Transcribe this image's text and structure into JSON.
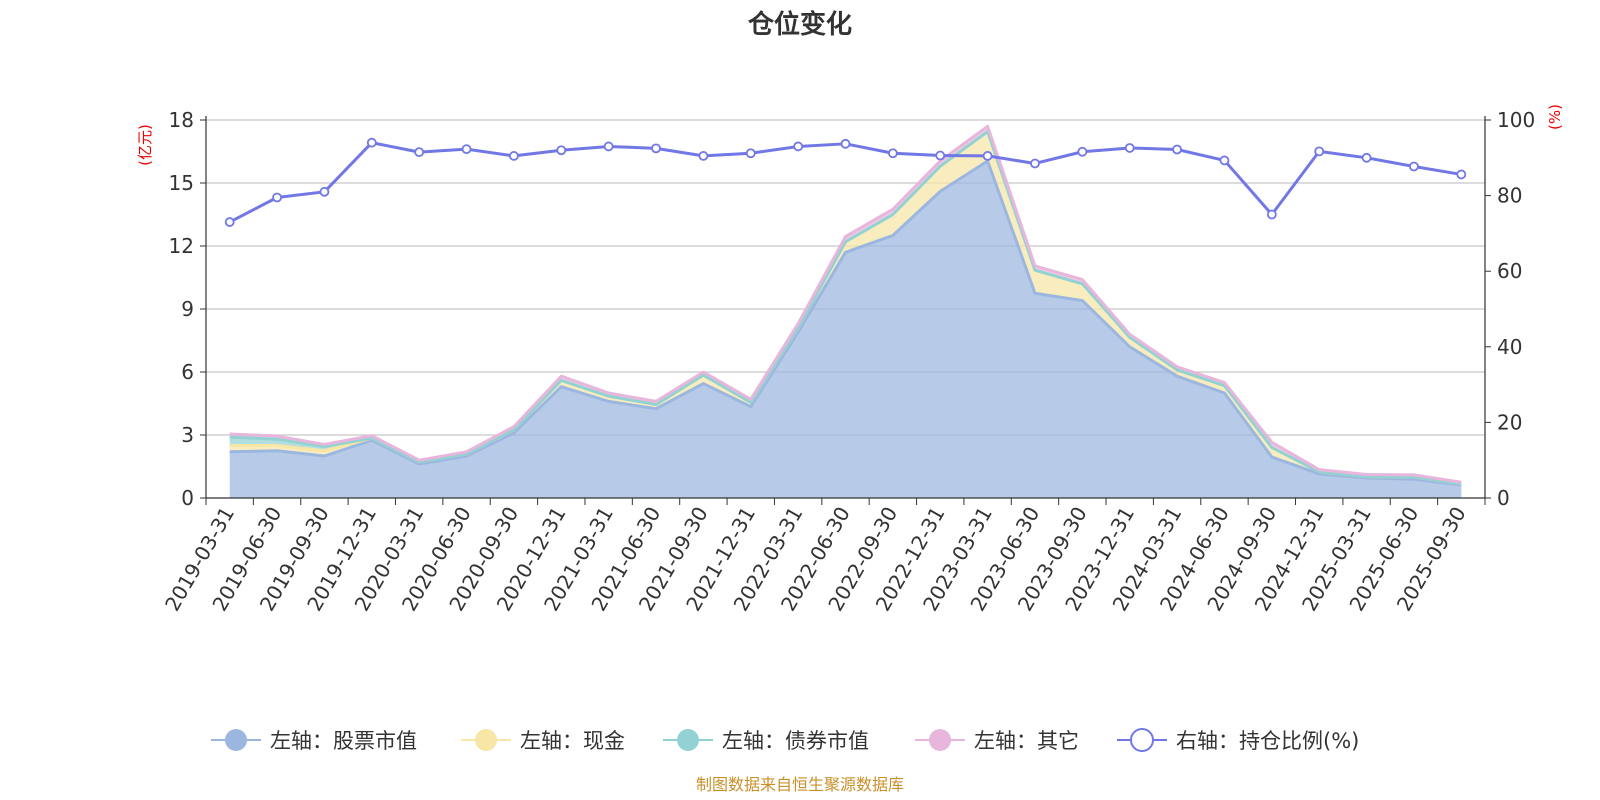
{
  "chart_data": {
    "type": "area",
    "title": "仓位变化",
    "left_axis_unit": "(亿元)",
    "right_axis_unit": "(%)",
    "categories": [
      "2019-03-31",
      "2019-06-30",
      "2019-09-30",
      "2019-12-31",
      "2020-03-31",
      "2020-06-30",
      "2020-09-30",
      "2020-12-31",
      "2021-03-31",
      "2021-06-30",
      "2021-09-30",
      "2021-12-31",
      "2022-03-31",
      "2022-06-30",
      "2022-09-30",
      "2022-12-31",
      "2023-03-31",
      "2023-06-30",
      "2023-09-30",
      "2023-12-31",
      "2024-03-31",
      "2024-06-30",
      "2024-09-30",
      "2024-12-31",
      "2025-03-31",
      "2025-06-30",
      "2025-09-30"
    ],
    "y_left": {
      "min": 0,
      "max": 18,
      "ticks": [
        "0",
        "3",
        "6",
        "9",
        "12",
        "15",
        "18"
      ]
    },
    "y_right": {
      "min": 0,
      "max": 100,
      "ticks": [
        "0",
        "20",
        "40",
        "60",
        "80",
        "100"
      ]
    },
    "series": [
      {
        "name": "左轴：股票市值",
        "axis": "left",
        "stack": true,
        "color": "#9bb7e0",
        "values": [
          2.2,
          2.25,
          2.0,
          2.75,
          1.62,
          2.0,
          3.1,
          5.3,
          4.6,
          4.25,
          5.45,
          4.35,
          7.9,
          11.7,
          12.5,
          14.6,
          16.05,
          9.75,
          9.4,
          7.2,
          5.8,
          5.0,
          1.95,
          1.15,
          0.95,
          0.9,
          0.62
        ]
      },
      {
        "name": "左轴：现金",
        "axis": "left",
        "stack": true,
        "color": "#f7e6a6",
        "values": [
          0.3,
          0.25,
          0.25,
          0.1,
          0.1,
          0.1,
          0.15,
          0.3,
          0.25,
          0.2,
          0.4,
          0.2,
          0.2,
          0.5,
          1.0,
          1.2,
          1.4,
          1.1,
          0.8,
          0.45,
          0.3,
          0.35,
          0.45,
          0.1,
          0.07,
          0.1,
          0.05
        ]
      },
      {
        "name": "左轴：债券市值",
        "axis": "left",
        "stack": true,
        "color": "#93d2d2",
        "values": [
          0.4,
          0.3,
          0.2,
          0,
          0,
          0,
          0,
          0,
          0,
          0,
          0,
          0,
          0,
          0,
          0,
          0,
          0,
          0,
          0,
          0,
          0,
          0,
          0,
          0,
          0,
          0,
          0
        ]
      },
      {
        "name": "左轴：其它",
        "axis": "left",
        "stack": true,
        "color": "#e8b6dc",
        "values": [
          0.15,
          0.15,
          0.1,
          0.12,
          0.08,
          0.1,
          0.15,
          0.2,
          0.15,
          0.15,
          0.15,
          0.15,
          0.2,
          0.25,
          0.25,
          0.25,
          0.25,
          0.2,
          0.2,
          0.15,
          0.15,
          0.15,
          0.25,
          0.1,
          0.1,
          0.1,
          0.08
        ]
      },
      {
        "name": "右轴：持仓比例(%)",
        "axis": "right",
        "type": "line",
        "color": "#7277e6",
        "values": [
          73,
          79.5,
          81,
          94,
          91.5,
          92.3,
          90.5,
          92,
          93,
          92.5,
          90.5,
          91.2,
          93,
          93.7,
          91.2,
          90.6,
          90.5,
          88.5,
          91.6,
          92.6,
          92.2,
          89.3,
          75,
          91.7,
          90,
          87.7,
          85.6
        ]
      }
    ],
    "grid": true,
    "legend_position": "bottom",
    "source_note": "制图数据来自恒生聚源数据库"
  }
}
